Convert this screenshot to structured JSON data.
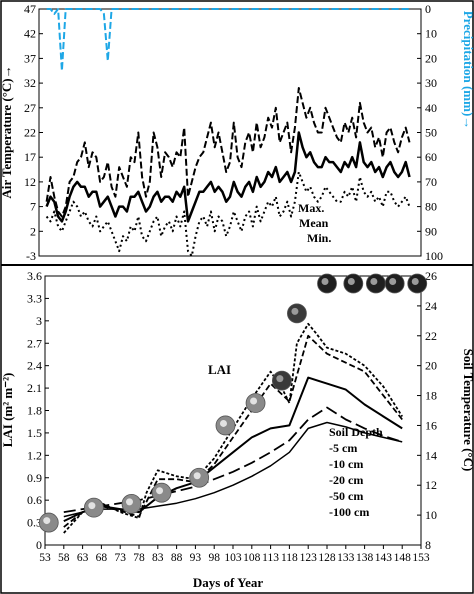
{
  "chart_data": [
    {
      "type": "line",
      "panel": "top",
      "ylabel": "Air Temperature (°C)→",
      "y2label": "Precipitation (mm)→",
      "ylim": [
        -3,
        47
      ],
      "y2lim": [
        100,
        0
      ],
      "yticks": [
        -3,
        2,
        7,
        12,
        17,
        22,
        27,
        32,
        37,
        42,
        47
      ],
      "y2ticks": [
        0,
        10,
        20,
        30,
        40,
        50,
        60,
        70,
        80,
        90,
        100
      ],
      "xlim": [
        53,
        153
      ],
      "grid": false,
      "legend_labels": [
        "Max.",
        "Mean",
        "Min."
      ],
      "colors": {
        "temperature": "#000000",
        "precipitation": "#1ea7e6"
      },
      "series": [
        {
          "name": "Max.",
          "style": "dashed",
          "x": [
            55,
            56,
            57,
            58,
            59,
            60,
            61,
            62,
            63,
            64,
            65,
            66,
            67,
            68,
            69,
            70,
            71,
            72,
            73,
            74,
            75,
            76,
            77,
            78,
            79,
            80,
            81,
            82,
            83,
            84,
            85,
            86,
            87,
            88,
            89,
            90,
            91,
            92,
            93,
            94,
            95,
            96,
            97,
            98,
            99,
            100,
            101,
            102,
            103,
            104,
            105,
            106,
            107,
            108,
            109,
            110,
            111,
            112,
            113,
            114,
            115,
            116,
            117,
            118,
            119,
            120,
            121,
            122,
            123,
            124,
            125,
            126,
            127,
            128,
            129,
            130,
            131,
            132,
            133,
            134,
            135,
            136,
            137,
            138,
            139,
            140,
            141,
            142,
            143,
            144,
            145,
            146,
            147,
            148,
            149,
            150
          ],
          "y": [
            8,
            13,
            9,
            6,
            5,
            7,
            12,
            13,
            16,
            17,
            20,
            15,
            18,
            17,
            12,
            13,
            16,
            11,
            9,
            15,
            13,
            11,
            17,
            16,
            22,
            13,
            9,
            12,
            22,
            19,
            13,
            18,
            17,
            15,
            18,
            17,
            23,
            9,
            12,
            15,
            17,
            18,
            21,
            24,
            19,
            22,
            18,
            14,
            16,
            24,
            17,
            15,
            20,
            22,
            18,
            24,
            19,
            21,
            25,
            23,
            27,
            20,
            22,
            24,
            18,
            23,
            31,
            28,
            25,
            27,
            24,
            22,
            22,
            27,
            25,
            23,
            21,
            20,
            24,
            22,
            25,
            21,
            28,
            24,
            22,
            23,
            19,
            21,
            17,
            22,
            23,
            20,
            18,
            21,
            23,
            20
          ]
        },
        {
          "name": "Mean",
          "style": "solid",
          "x": [
            55,
            56,
            57,
            58,
            59,
            60,
            61,
            62,
            63,
            64,
            65,
            66,
            67,
            68,
            69,
            70,
            71,
            72,
            73,
            74,
            75,
            76,
            77,
            78,
            79,
            80,
            81,
            82,
            83,
            84,
            85,
            86,
            87,
            88,
            89,
            90,
            91,
            92,
            93,
            94,
            95,
            96,
            97,
            98,
            99,
            100,
            101,
            102,
            103,
            104,
            105,
            106,
            107,
            108,
            109,
            110,
            111,
            112,
            113,
            114,
            115,
            116,
            117,
            118,
            119,
            120,
            121,
            122,
            123,
            124,
            125,
            126,
            127,
            128,
            129,
            130,
            131,
            132,
            133,
            134,
            135,
            136,
            137,
            138,
            139,
            140,
            141,
            142,
            143,
            144,
            145,
            146,
            147,
            148,
            149,
            150
          ],
          "y": [
            7,
            9,
            8,
            5,
            4,
            6,
            9,
            11,
            12,
            11,
            11,
            9,
            10,
            10,
            7,
            8,
            9,
            7,
            5,
            7,
            7,
            6,
            9,
            9,
            10,
            8,
            6,
            7,
            9,
            10,
            8,
            9,
            9,
            8,
            10,
            9,
            11,
            4,
            6,
            8,
            10,
            10,
            11,
            12,
            10,
            11,
            10,
            8,
            9,
            12,
            10,
            9,
            11,
            12,
            10,
            13,
            11,
            12,
            14,
            13,
            15,
            12,
            13,
            14,
            12,
            14,
            22,
            19,
            17,
            18,
            16,
            15,
            15,
            17,
            16,
            16,
            15,
            14,
            16,
            15,
            17,
            15,
            20,
            16,
            15,
            16,
            14,
            15,
            13,
            15,
            16,
            14,
            13,
            14,
            16,
            13
          ]
        },
        {
          "name": "Min.",
          "style": "dotted",
          "x": [
            55,
            56,
            57,
            58,
            59,
            60,
            61,
            62,
            63,
            64,
            65,
            66,
            67,
            68,
            69,
            70,
            71,
            72,
            73,
            74,
            75,
            76,
            77,
            78,
            79,
            80,
            81,
            82,
            83,
            84,
            85,
            86,
            87,
            88,
            89,
            90,
            91,
            92,
            93,
            94,
            95,
            96,
            97,
            98,
            99,
            100,
            101,
            102,
            103,
            104,
            105,
            106,
            107,
            108,
            109,
            110,
            111,
            112,
            113,
            114,
            115,
            116,
            117,
            118,
            119,
            120,
            121,
            122,
            123,
            124,
            125,
            126,
            127,
            128,
            129,
            130,
            131,
            132,
            133,
            134,
            135,
            136,
            137,
            138,
            139,
            140,
            141,
            142,
            143,
            144,
            145,
            146,
            147,
            148,
            149,
            150
          ],
          "y": [
            5,
            4,
            6,
            3,
            2,
            4,
            6,
            8,
            7,
            5,
            6,
            4,
            3,
            5,
            2,
            3,
            4,
            2,
            0,
            -2,
            1,
            0,
            3,
            2,
            5,
            1,
            0,
            2,
            4,
            5,
            1,
            3,
            4,
            2,
            5,
            3,
            6,
            -2,
            -3,
            1,
            4,
            5,
            3,
            6,
            2,
            5,
            4,
            1,
            3,
            6,
            4,
            2,
            5,
            6,
            3,
            7,
            4,
            6,
            8,
            7,
            9,
            5,
            6,
            8,
            5,
            8,
            14,
            12,
            10,
            11,
            9,
            8,
            9,
            11,
            10,
            9,
            8,
            8,
            10,
            9,
            11,
            8,
            13,
            10,
            9,
            10,
            8,
            9,
            7,
            10,
            10,
            8,
            7,
            8,
            9,
            7
          ]
        },
        {
          "name": "Precipitation",
          "style": "dashed",
          "axis": "y2",
          "x": [
            55,
            56,
            57,
            58,
            59,
            60,
            61,
            62,
            63,
            64,
            65,
            66,
            67,
            68,
            69,
            70,
            71,
            72,
            73,
            74,
            75,
            76,
            77,
            78,
            79,
            80,
            81,
            82,
            83,
            84,
            85,
            86,
            87,
            88,
            89,
            90,
            91,
            92,
            93,
            94,
            95,
            96,
            97,
            98,
            99,
            100,
            101,
            102,
            103,
            104,
            105,
            106,
            107,
            108,
            109,
            110,
            111,
            112,
            113,
            114,
            115,
            116,
            117,
            118,
            119,
            120,
            121,
            122,
            123,
            124,
            125,
            126,
            127,
            128,
            129,
            130,
            131,
            132,
            133,
            134,
            135,
            136,
            137,
            138,
            139,
            140,
            141,
            142,
            143,
            144,
            145,
            146,
            147,
            148,
            149,
            150
          ],
          "y": [
            0,
            0,
            2,
            0,
            25,
            0,
            0,
            0,
            0,
            0,
            0,
            0,
            0,
            0,
            0,
            2,
            21,
            0,
            0,
            0,
            0,
            0,
            0,
            0,
            0,
            0,
            0,
            0,
            0,
            0,
            0,
            0,
            0,
            0,
            0,
            0,
            0,
            0,
            0,
            0,
            0,
            0,
            0,
            0,
            0,
            0,
            0,
            0,
            0,
            0,
            0,
            0,
            0,
            0,
            0,
            0,
            0,
            0,
            0,
            0,
            0,
            0,
            0,
            0,
            0,
            0,
            0,
            0,
            0,
            0,
            0,
            0,
            0,
            0,
            0,
            0,
            0,
            0,
            0,
            0,
            0,
            0,
            0,
            0,
            0,
            0,
            0,
            0,
            0,
            0,
            0,
            0,
            0,
            0,
            0,
            0
          ]
        }
      ]
    },
    {
      "type": "line",
      "panel": "bottom",
      "xlabel": "Days of Year",
      "ylabel": "LAI (m² m⁻²)",
      "y2label": "Soil Temperature (°C)",
      "xlim": [
        53,
        153
      ],
      "xticks": [
        53,
        58,
        63,
        68,
        73,
        78,
        83,
        88,
        93,
        98,
        103,
        108,
        113,
        118,
        123,
        128,
        133,
        138,
        143,
        148,
        153
      ],
      "ylim": [
        0,
        3.6
      ],
      "yticks": [
        0,
        0.3,
        0.6,
        0.9,
        1.2,
        1.5,
        1.8,
        2.1,
        2.4,
        2.7,
        3.0,
        3.3,
        3.6
      ],
      "y2lim": [
        8,
        26
      ],
      "y2ticks": [
        8,
        10,
        12,
        14,
        16,
        18,
        20,
        22,
        24,
        26
      ],
      "grid": false,
      "legend": {
        "title": "Soil Depth",
        "entries": [
          "-5 cm",
          "-10 cm",
          "-20 cm",
          "-50 cm",
          "-100 cm"
        ]
      },
      "lai_label": "LAI",
      "lai_points": {
        "x": [
          54,
          66,
          76,
          84,
          94,
          101,
          109,
          116,
          120,
          128,
          135,
          141,
          146,
          152
        ],
        "y": [
          0.3,
          0.5,
          0.55,
          0.7,
          0.9,
          1.6,
          1.9,
          2.2,
          3.1,
          3.5,
          3.5,
          3.5,
          3.5,
          3.5
        ]
      },
      "series": [
        {
          "name": "-5 cm",
          "style": "short-dash",
          "axis": "y2",
          "x": [
            58,
            63,
            68,
            73,
            78,
            80,
            83,
            88,
            93,
            98,
            103,
            108,
            113,
            116,
            118,
            120,
            123,
            125,
            128,
            133,
            138,
            143,
            148
          ],
          "y": [
            8.8,
            10.2,
            10.8,
            10.2,
            9.8,
            11.5,
            13.0,
            12.6,
            12.4,
            13.8,
            15.8,
            17.8,
            19.6,
            18.5,
            17.5,
            21.5,
            22.8,
            22.2,
            21.2,
            20.8,
            20.0,
            18.6,
            16.6
          ]
        },
        {
          "name": "-10 cm",
          "style": "medium-dash",
          "axis": "y2",
          "x": [
            58,
            63,
            68,
            73,
            78,
            83,
            88,
            93,
            98,
            103,
            108,
            113,
            118,
            123,
            128,
            133,
            138,
            143,
            148
          ],
          "y": [
            9.2,
            10.2,
            10.6,
            10.3,
            9.9,
            12.4,
            12.4,
            12.2,
            13.4,
            15.2,
            17.0,
            18.8,
            17.6,
            22.0,
            20.8,
            20.2,
            19.6,
            18.0,
            16.4
          ]
        },
        {
          "name": "-20 cm",
          "style": "solid",
          "axis": "y2",
          "x": [
            58,
            63,
            68,
            73,
            78,
            83,
            88,
            93,
            98,
            103,
            108,
            113,
            118,
            123,
            128,
            133,
            138,
            143,
            148
          ],
          "y": [
            9.6,
            10.2,
            10.6,
            10.4,
            10.2,
            11.2,
            11.8,
            12.2,
            13.2,
            14.2,
            15.2,
            15.8,
            16.0,
            19.2,
            18.8,
            18.4,
            17.4,
            16.6,
            15.8
          ]
        },
        {
          "name": "-50 cm",
          "style": "long-dash",
          "axis": "y2",
          "x": [
            58,
            63,
            68,
            73,
            78,
            83,
            88,
            93,
            98,
            103,
            108,
            113,
            118,
            123,
            128,
            133,
            138,
            143,
            148
          ],
          "y": [
            10.2,
            10.4,
            10.6,
            10.8,
            11.0,
            11.3,
            11.6,
            11.9,
            12.4,
            12.9,
            13.5,
            14.2,
            15.0,
            16.4,
            17.2,
            16.4,
            15.8,
            15.3,
            14.9
          ]
        },
        {
          "name": "-100 cm",
          "style": "solid-thin",
          "axis": "y2",
          "x": [
            58,
            63,
            68,
            73,
            78,
            83,
            88,
            93,
            98,
            103,
            108,
            113,
            118,
            123,
            128,
            133,
            138,
            143,
            148
          ],
          "y": [
            9.9,
            10.2,
            10.4,
            10.4,
            10.4,
            10.6,
            10.8,
            11.1,
            11.5,
            12.0,
            12.6,
            13.3,
            14.2,
            15.8,
            16.2,
            15.9,
            15.5,
            15.2,
            14.9
          ]
        }
      ]
    }
  ]
}
